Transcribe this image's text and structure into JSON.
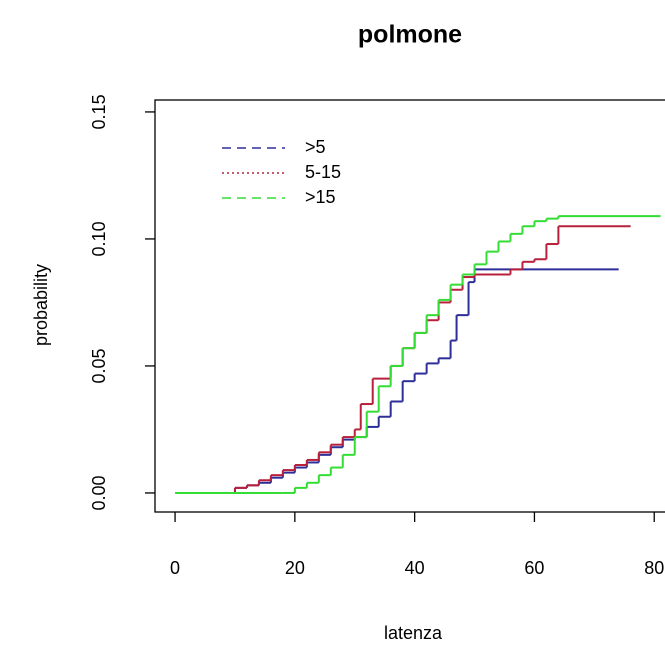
{
  "chart_data": {
    "type": "line",
    "step": true,
    "title": "polmone",
    "x_label": "latenza",
    "y_label": "probability",
    "xlim": [
      -3.35,
      81.8
    ],
    "ylim": [
      -0.0075,
      0.1547
    ],
    "xticks": [
      0,
      20,
      40,
      60,
      80
    ],
    "yticks": [
      {
        "value": 0,
        "label": "0.00"
      },
      {
        "value": 0.05,
        "label": "0.05"
      },
      {
        "value": 0.1,
        "label": "0.10"
      },
      {
        "value": 0.15,
        "label": "0.15"
      }
    ],
    "legend": "top-left",
    "series": [
      {
        "name": ">5",
        "color": "#2e2e99",
        "legend_line": "dashed",
        "x": [
          7,
          10,
          12,
          14,
          16,
          18,
          20,
          22,
          24,
          26,
          28,
          30,
          32,
          34,
          36,
          38,
          40,
          42,
          44,
          46,
          47,
          49,
          50,
          74
        ],
        "values": [
          0,
          0.002,
          0.003,
          0.004,
          0.006,
          0.008,
          0.01,
          0.012,
          0.015,
          0.018,
          0.021,
          0.022,
          0.026,
          0.03,
          0.036,
          0.044,
          0.047,
          0.051,
          0.053,
          0.06,
          0.07,
          0.083,
          0.088,
          0.088
        ]
      },
      {
        "name": "5-15",
        "color": "#b8203c",
        "legend_line": "dotted",
        "x": [
          7,
          10,
          12,
          14,
          16,
          18,
          20,
          22,
          24,
          26,
          28,
          30,
          31,
          33,
          36,
          38,
          40,
          42,
          44,
          46,
          48,
          50,
          56,
          58,
          60,
          62,
          64,
          76
        ],
        "values": [
          0,
          0.002,
          0.003,
          0.005,
          0.007,
          0.009,
          0.011,
          0.013,
          0.016,
          0.019,
          0.022,
          0.025,
          0.035,
          0.045,
          0.05,
          0.057,
          0.063,
          0.068,
          0.075,
          0.08,
          0.085,
          0.086,
          0.088,
          0.091,
          0.092,
          0.098,
          0.105,
          0.105
        ]
      },
      {
        "name": ">15",
        "color": "#33dd33",
        "legend_line": "dashed",
        "x": [
          0,
          18,
          20,
          22,
          24,
          26,
          28,
          30,
          32,
          34,
          36,
          38,
          40,
          42,
          44,
          46,
          48,
          50,
          52,
          54,
          56,
          58,
          60,
          62,
          64,
          81
        ],
        "values": [
          0,
          0,
          0.002,
          0.004,
          0.007,
          0.01,
          0.015,
          0.022,
          0.032,
          0.042,
          0.05,
          0.057,
          0.063,
          0.07,
          0.076,
          0.082,
          0.086,
          0.09,
          0.095,
          0.099,
          0.102,
          0.105,
          0.107,
          0.108,
          0.109,
          0.109
        ]
      }
    ]
  }
}
